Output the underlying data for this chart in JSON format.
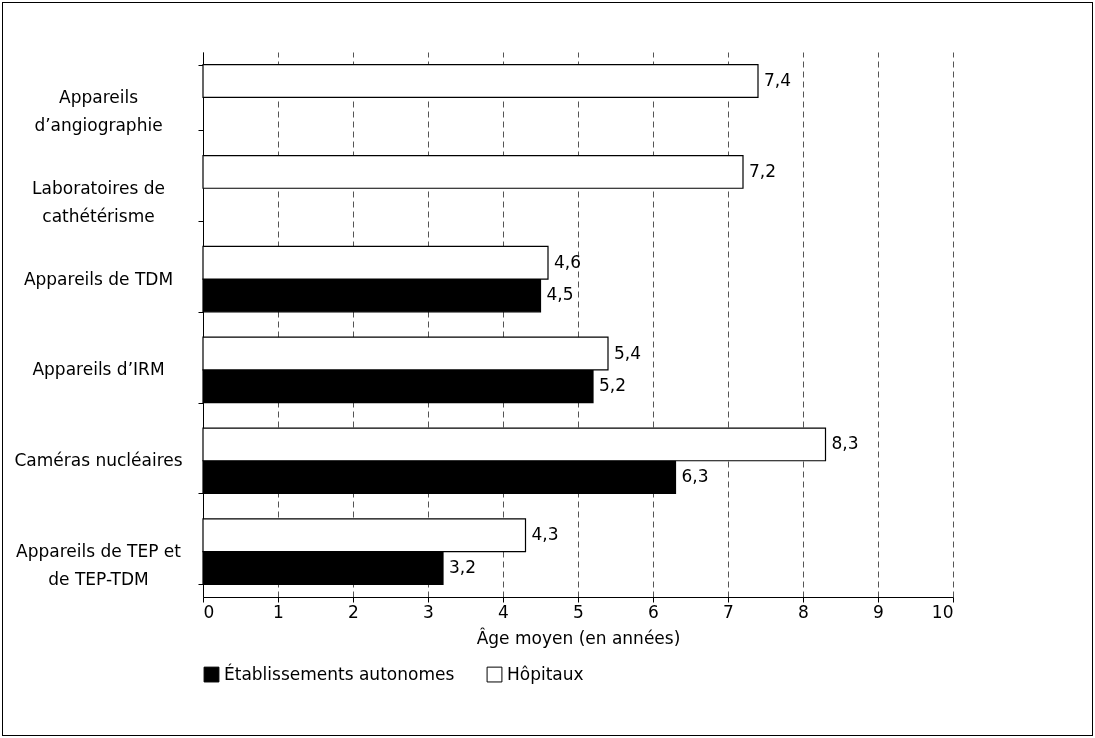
{
  "chart_data": {
    "type": "bar",
    "orientation": "horizontal",
    "xlabel": "Âge moyen (en années)",
    "categories": [
      "Appareils d’angiographie",
      "Laboratoires de cathétérisme",
      "Appareils de TDM",
      "Appareils d’IRM",
      "Caméras nucléaires",
      "Appareils de TEP et de TEP-TDM"
    ],
    "series": [
      {
        "name": "Établissements autonomes",
        "color": "#000000",
        "values": [
          null,
          null,
          4.5,
          5.2,
          6.3,
          3.2
        ],
        "value_labels": [
          null,
          null,
          "4,5",
          "5,2",
          "6,3",
          "3,2"
        ]
      },
      {
        "name": "Hôpitaux",
        "color": "#ffffff",
        "values": [
          7.4,
          7.2,
          4.6,
          5.4,
          8.3,
          4.3
        ],
        "value_labels": [
          "7,4",
          "7,2",
          "4,6",
          "5,4",
          "8,3",
          "4,3"
        ]
      }
    ],
    "xlim": [
      0,
      10
    ],
    "xticks": [
      0,
      1,
      2,
      3,
      4,
      5,
      6,
      7,
      8,
      9,
      10
    ],
    "grid": "x",
    "legend": "bottom"
  }
}
